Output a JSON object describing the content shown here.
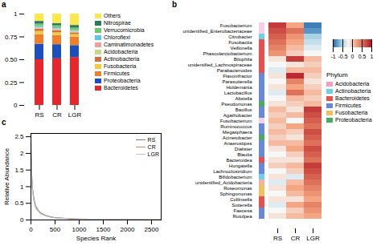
{
  "chart_data": [
    {
      "type": "bar",
      "title": "a",
      "stacked": true,
      "grid": false,
      "legend": "right",
      "categories": [
        "RS",
        "CR",
        "LGR"
      ],
      "series": [
        {
          "name": "Bacteroidetes",
          "color": "#e8252a",
          "values": [
            0.5,
            0.51,
            0.525
          ]
        },
        {
          "name": "Proteobacteria",
          "color": "#1a4fbd",
          "values": [
            0.17,
            0.155,
            0.13
          ]
        },
        {
          "name": "Firmicutes",
          "color": "#f07f2a",
          "values": [
            0.105,
            0.1,
            0.095
          ]
        },
        {
          "name": "Fusobacteria",
          "color": "#f5c842",
          "values": [
            0.035,
            0.03,
            0.025
          ]
        },
        {
          "name": "Actinobacteria",
          "color": "#d4703b",
          "values": [
            0.025,
            0.025,
            0.02
          ]
        },
        {
          "name": "Acidobacteria",
          "color": "#c3d98c",
          "values": [
            0.01,
            0.01,
            0.008
          ]
        },
        {
          "name": "Caminatimonadetes",
          "color": "#f0a0a0",
          "values": [
            0.01,
            0.01,
            0.008
          ]
        },
        {
          "name": "Chloroflexi",
          "color": "#5ac8e0",
          "values": [
            0.015,
            0.012,
            0.01
          ]
        },
        {
          "name": "Verrucomicrobia",
          "color": "#6bc96b",
          "values": [
            0.02,
            0.02,
            0.025
          ]
        },
        {
          "name": "Nitrospirae",
          "color": "#2a7a5a",
          "values": [
            0.03,
            0.025,
            0.03
          ]
        },
        {
          "name": "Others",
          "color": "#fce84a",
          "values": [
            0.08,
            0.103,
            0.124
          ]
        }
      ],
      "ylim": [
        0,
        1.0
      ],
      "yticks": [
        0,
        0.25,
        {
          "value": 0.5,
          "label": "0.50"
        },
        0.75,
        1
      ]
    },
    {
      "type": "line",
      "title": "c",
      "grid": false,
      "legend": "upper right",
      "xlabel": "Species Rank",
      "ylabel": "Relative Abundance",
      "x": [
        1,
        5,
        10,
        20,
        30,
        50,
        75,
        100,
        150,
        200,
        300,
        400,
        500,
        700,
        900,
        1200,
        1500,
        1800,
        2100,
        2400,
        2700
      ],
      "series": [
        {
          "name": "RS",
          "color": "#808080",
          "values": [
            2.5,
            2.1,
            1.7,
            1.3,
            1.0,
            0.75,
            0.55,
            0.42,
            0.3,
            0.22,
            0.14,
            0.1,
            0.07,
            0.05,
            0.03,
            0.02,
            0.015,
            0.01,
            0.008,
            0.005,
            0.003
          ]
        },
        {
          "name": "CR",
          "color": "#cd8b6a",
          "values": [
            2.3,
            1.9,
            1.55,
            1.2,
            0.95,
            0.7,
            0.5,
            0.38,
            0.27,
            0.2,
            0.13,
            0.09,
            0.065,
            0.048,
            0.033,
            0.025,
            0.018,
            0.015,
            0.012,
            0.01,
            0.008
          ]
        },
        {
          "name": "LGR",
          "color": "#b8c4d0",
          "values": [
            2.2,
            1.8,
            1.45,
            1.1,
            0.88,
            0.65,
            0.47,
            0.35,
            0.25,
            0.185,
            0.12,
            0.085,
            0.062,
            0.046,
            0.032,
            0.025,
            0.02,
            0.016,
            0.013,
            0.01,
            0.008
          ]
        }
      ],
      "xlim": [
        0,
        2700
      ],
      "xticks": [
        0,
        500,
        1000,
        1500,
        2000,
        2500
      ],
      "ylim": [
        0,
        2.6
      ],
      "yticks": [
        0,
        0.5,
        1,
        1.5,
        2,
        2.5
      ]
    },
    {
      "type": "heatmap",
      "title": "b",
      "legend": "right",
      "legend_title": "Phylum",
      "x": [
        "RS",
        "CR",
        "LGR"
      ],
      "y": [
        "Fusobacterium",
        "unidentified_Enterobacteriaceae",
        "Citrobacter",
        "Fusobactia",
        "Veillonella",
        "Phascolarctobacterium",
        "Bilophila",
        "unidentified_Lachnospiraceae",
        "Parabacteroides",
        "Flavonifractor",
        "Parasutterella",
        "Holdemania",
        "Lactobacillus",
        "Absiella",
        "Pseudomonas",
        "Bacillus",
        "Agathobacter",
        "Fusobacterium",
        "Ruminococcus",
        "Megasphaera",
        "Acinetobacter",
        "Anaerostipes",
        "Dialister",
        "Blautia",
        "Bacteroidea",
        "Hungatella",
        "Lachnoclostridium",
        "Bifidobacterium",
        "unidentified_Acidobacteria",
        "Roseomonas",
        "Sphingomonas",
        "Collinsella",
        "Sutterella",
        "Faecesa",
        "Rotulpea"
      ],
      "row_colors": [
        "#f5d0e8",
        "#f5d0e8",
        "#6dcfe8",
        "#e85050",
        "#e85050",
        "#e85050",
        "#e85050",
        "#e85050",
        "#e85050",
        "#6888d8",
        "#6888d8",
        "#6888d8",
        "#6888d8",
        "#6888d8",
        "#4aaa60",
        "#6888d8",
        "#6888d8",
        "#f5d0e8",
        "#6888d8",
        "#6888d8",
        "#4aaa60",
        "#6888d8",
        "#6888d8",
        "#6888d8",
        "#e85050",
        "#6888d8",
        "#6888d8",
        "#6dcfe8",
        "#f5b0a0",
        "#f0c060",
        "#f0c060",
        "#e85050",
        "#e85050",
        "#6888d8",
        "#6888d8"
      ],
      "values": [
        [
          0.8,
          0.2,
          -0.9
        ],
        [
          0.7,
          0.5,
          -0.8
        ],
        [
          0.6,
          0.3,
          -0.5
        ],
        [
          0.5,
          0.2,
          -0.4
        ],
        [
          0.4,
          0.1,
          -0.3
        ],
        [
          0.3,
          0.0,
          -0.2
        ],
        [
          -0.1,
          0.8,
          0.1
        ],
        [
          -0.2,
          -0.1,
          0.0
        ],
        [
          -0.3,
          0.1,
          0.1
        ],
        [
          -0.1,
          0.9,
          0.0
        ],
        [
          -0.2,
          0.4,
          -0.1
        ],
        [
          -0.1,
          0.2,
          0.0
        ],
        [
          -0.3,
          0.5,
          0.1
        ],
        [
          -0.2,
          0.1,
          0.0
        ],
        [
          -0.1,
          0.0,
          0.1
        ],
        [
          0.1,
          -0.1,
          0.8
        ],
        [
          0.0,
          0.1,
          0.7
        ],
        [
          0.1,
          -0.2,
          0.6
        ],
        [
          0.0,
          0.2,
          0.5
        ],
        [
          0.1,
          0.0,
          0.7
        ],
        [
          0.0,
          -0.1,
          0.6
        ],
        [
          0.1,
          0.1,
          0.5
        ],
        [
          -0.1,
          0.2,
          0.7
        ],
        [
          -0.2,
          0.0,
          0.6
        ],
        [
          -0.1,
          -0.1,
          0.5
        ],
        [
          0.0,
          0.1,
          0.8
        ],
        [
          -0.2,
          0.0,
          0.7
        ],
        [
          -0.1,
          -0.3,
          0.6
        ],
        [
          -0.3,
          0.1,
          0.5
        ],
        [
          -0.1,
          0.2,
          0.4
        ],
        [
          -0.2,
          0.1,
          0.3
        ],
        [
          -0.1,
          -0.1,
          0.2
        ],
        [
          -0.3,
          0.2,
          0.4
        ],
        [
          -0.2,
          0.0,
          0.3
        ],
        [
          -0.1,
          0.1,
          0.2
        ]
      ],
      "colorbar": {
        "range": [
          -1,
          1
        ],
        "ticks": [
          -1,
          -0.5,
          0,
          0.5,
          1
        ],
        "colors": [
          "#2166ac",
          "#92c5de",
          "#f7f7f7",
          "#f4a582",
          "#d6604d",
          "#b2182b"
        ]
      },
      "phyla": [
        {
          "name": "Acidobacteria",
          "color": "#f0a0c0"
        },
        {
          "name": "Actinobacteria",
          "color": "#6dcfe8"
        },
        {
          "name": "Bacteroidetes",
          "color": "#e85050"
        },
        {
          "name": "Firmicutes",
          "color": "#6888d8"
        },
        {
          "name": "Fusobacteria",
          "color": "#f0c060"
        },
        {
          "name": "Proteobacteria",
          "color": "#4aaa60"
        }
      ]
    }
  ]
}
